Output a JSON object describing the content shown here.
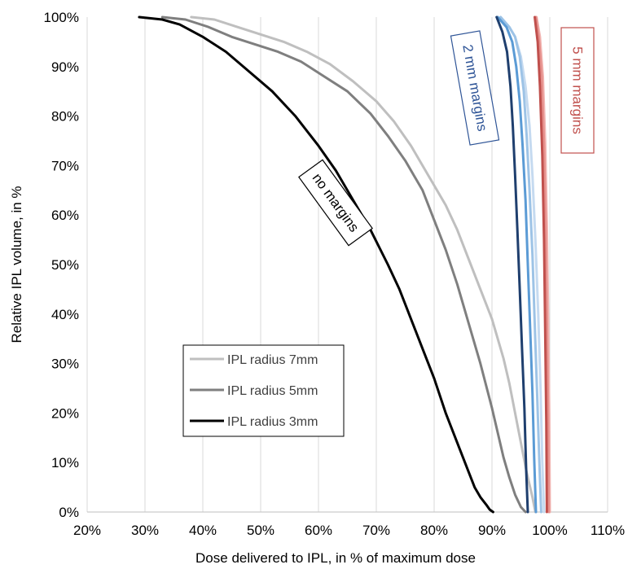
{
  "chart_data": {
    "type": "line",
    "title": "",
    "xlabel": "Dose delivered to IPL, in % of maximum dose",
    "ylabel": "Relative IPL volume, in %",
    "xlim": [
      20,
      110
    ],
    "ylim": [
      0,
      100
    ],
    "x_ticks": [
      "20%",
      "30%",
      "40%",
      "50%",
      "60%",
      "70%",
      "80%",
      "90%",
      "100%",
      "110%"
    ],
    "y_ticks": [
      "0%",
      "10%",
      "20%",
      "30%",
      "40%",
      "50%",
      "60%",
      "70%",
      "80%",
      "90%",
      "100%"
    ],
    "grid": {
      "vertical": true,
      "horizontal": false
    },
    "legend": {
      "position": "bottom-left",
      "entries": [
        {
          "label": "IPL radius 7mm",
          "color": "#bfbfbf"
        },
        {
          "label": "IPL radius 5mm",
          "color": "#7f7f7f"
        },
        {
          "label": "IPL radius 3mm",
          "color": "#000000"
        }
      ]
    },
    "series": [
      {
        "name": "IPL radius 7mm",
        "group": "no margins",
        "color": "#bfbfbf",
        "x": [
          38,
          42,
          46,
          50,
          54,
          58,
          62,
          66,
          70,
          73,
          76,
          79,
          82,
          84,
          86,
          88,
          90,
          91,
          92,
          93,
          94,
          95,
          96,
          97,
          97.5
        ],
        "y": [
          100,
          99.5,
          98,
          96.5,
          95,
          93,
          90.5,
          87,
          83,
          79,
          74,
          68,
          62,
          57,
          51,
          45,
          39,
          35,
          31,
          26,
          20,
          14,
          8,
          3,
          0
        ]
      },
      {
        "name": "IPL radius 5mm",
        "group": "no margins",
        "color": "#7f7f7f",
        "x": [
          33,
          37,
          41,
          45,
          49,
          53,
          57,
          61,
          65,
          69,
          72,
          75,
          78,
          80,
          82,
          84,
          86,
          88,
          90,
          91,
          92,
          93,
          94,
          95,
          95.8
        ],
        "y": [
          100,
          99.5,
          98,
          96,
          94.5,
          93,
          91,
          88,
          85,
          80.5,
          76,
          71,
          65,
          59,
          53,
          46,
          38,
          30,
          21,
          16,
          11,
          7,
          3.5,
          1,
          0
        ]
      },
      {
        "name": "IPL radius 3mm",
        "group": "no margins",
        "color": "#000000",
        "x": [
          29,
          33,
          36,
          40,
          44,
          48,
          52,
          56,
          60,
          63,
          66,
          69,
          72,
          74,
          76,
          78,
          80,
          82,
          84,
          86,
          87,
          88,
          89,
          89.6,
          90.2
        ],
        "y": [
          100,
          99.5,
          98.5,
          96,
          93,
          89,
          85,
          80,
          74,
          69,
          63,
          57,
          50,
          45,
          39,
          33,
          27,
          20,
          14,
          8,
          5,
          3,
          1.5,
          0.5,
          0
        ]
      },
      {
        "name": "",
        "group": "2 mm margins",
        "color": "#c5daf0",
        "x": [
          91.5,
          93,
          94,
          95,
          95.8,
          96.5,
          97,
          97.5,
          98,
          98.4,
          98.7,
          99
        ],
        "y": [
          100,
          98,
          96,
          92,
          86,
          78,
          68,
          55,
          40,
          25,
          10,
          0
        ]
      },
      {
        "name": "",
        "group": "2 mm margins",
        "color": "#9dc3e6",
        "x": [
          91.5,
          93,
          94,
          94.8,
          95.5,
          96,
          96.5,
          97,
          97.4,
          97.8,
          98.2,
          98.5
        ],
        "y": [
          100,
          98,
          96,
          92,
          85,
          76,
          65,
          52,
          38,
          24,
          10,
          0
        ]
      },
      {
        "name": "",
        "group": "2 mm margins",
        "color": "#5b9bd5",
        "x": [
          91,
          92.5,
          93.5,
          94.2,
          94.8,
          95.3,
          95.8,
          96.2,
          96.6,
          97,
          97.3,
          97.6
        ],
        "y": [
          100,
          98,
          95,
          90,
          83,
          74,
          63,
          50,
          37,
          24,
          11,
          0
        ]
      },
      {
        "name": "",
        "group": "2 mm margins",
        "color": "#1f3f6e",
        "x": [
          90.8,
          91.8,
          92.6,
          93.2,
          93.6,
          94,
          94.4,
          94.8,
          95.2,
          95.6,
          95.9,
          96.2
        ],
        "y": [
          100,
          97,
          93,
          86,
          78,
          68,
          57,
          45,
          33,
          21,
          9,
          0
        ]
      },
      {
        "name": "",
        "group": "5 mm margins",
        "color": "#f2b8b5",
        "x": [
          97.7,
          98.3,
          98.8,
          99.2,
          99.5,
          99.7,
          99.9,
          100
        ],
        "y": [
          100,
          96,
          88,
          75,
          58,
          40,
          20,
          0
        ]
      },
      {
        "name": "",
        "group": "5 mm margins",
        "color": "#e6908c",
        "x": [
          97.6,
          98.1,
          98.6,
          99,
          99.3,
          99.5,
          99.7,
          99.85
        ],
        "y": [
          100,
          96,
          88,
          74,
          57,
          39,
          19,
          0
        ]
      },
      {
        "name": "",
        "group": "5 mm margins",
        "color": "#c0504d",
        "x": [
          97.4,
          97.9,
          98.3,
          98.7,
          99,
          99.2,
          99.4,
          99.5
        ],
        "y": [
          100,
          95,
          86,
          72,
          55,
          37,
          18,
          0
        ]
      }
    ],
    "annotations": [
      {
        "text": "no margins",
        "color": "#000000"
      },
      {
        "text": "2 mm margins",
        "color": "#2f5597"
      },
      {
        "text": "5 mm margins",
        "color": "#c0504d"
      }
    ]
  }
}
